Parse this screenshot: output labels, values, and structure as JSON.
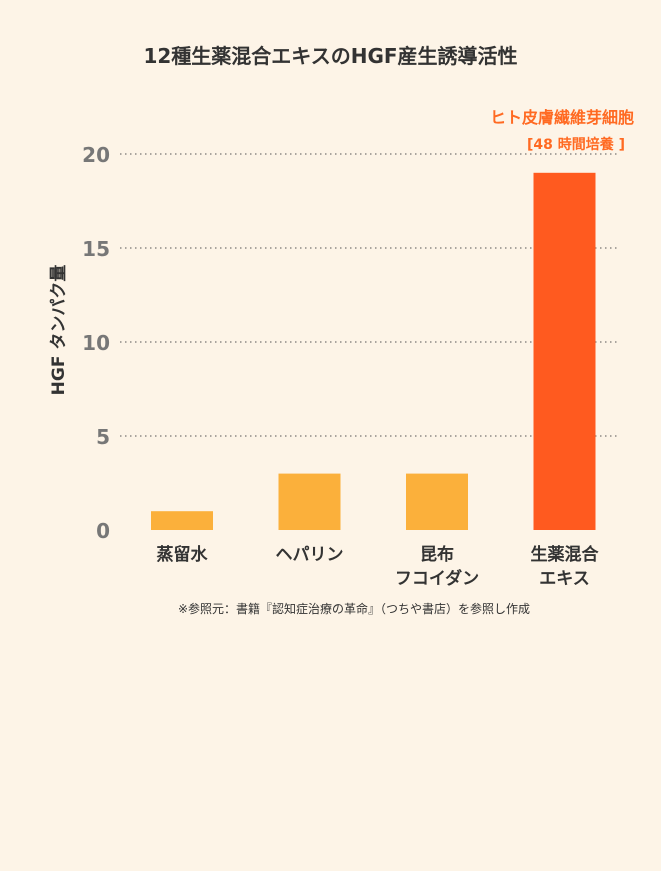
{
  "chart_data": {
    "type": "bar",
    "title": "12種生薬混合エキスのHGF産生誘導活性",
    "ylabel": "HGF タンパク量",
    "xlabel": "",
    "ylim": [
      0,
      20
    ],
    "yticks": [
      0,
      5,
      10,
      15,
      20
    ],
    "grid": "dotted horizontal",
    "categories": [
      [
        "蒸留水"
      ],
      [
        "ヘパリン"
      ],
      [
        "昆布",
        "フコイダン"
      ],
      [
        "生薬混合",
        "エキス"
      ]
    ],
    "values": [
      1,
      3,
      3,
      19
    ],
    "bar_colors": [
      "#fbb03b",
      "#fbb03b",
      "#fbb03b",
      "#ff5a1f"
    ],
    "annotations": [
      "ヒト皮膚繊維芽細胞",
      "[48 時間培養 ]"
    ]
  },
  "footnote": "※参照元：書籍『認知症治療の革命』（つちや書店）を参照し作成",
  "colors": {
    "background": "#fdf4e7",
    "bar": "#fbb03b",
    "highlight_bar": "#ff5a1f",
    "annotation": "#ff6a22",
    "tick_label": "#777777",
    "text": "#333333"
  }
}
